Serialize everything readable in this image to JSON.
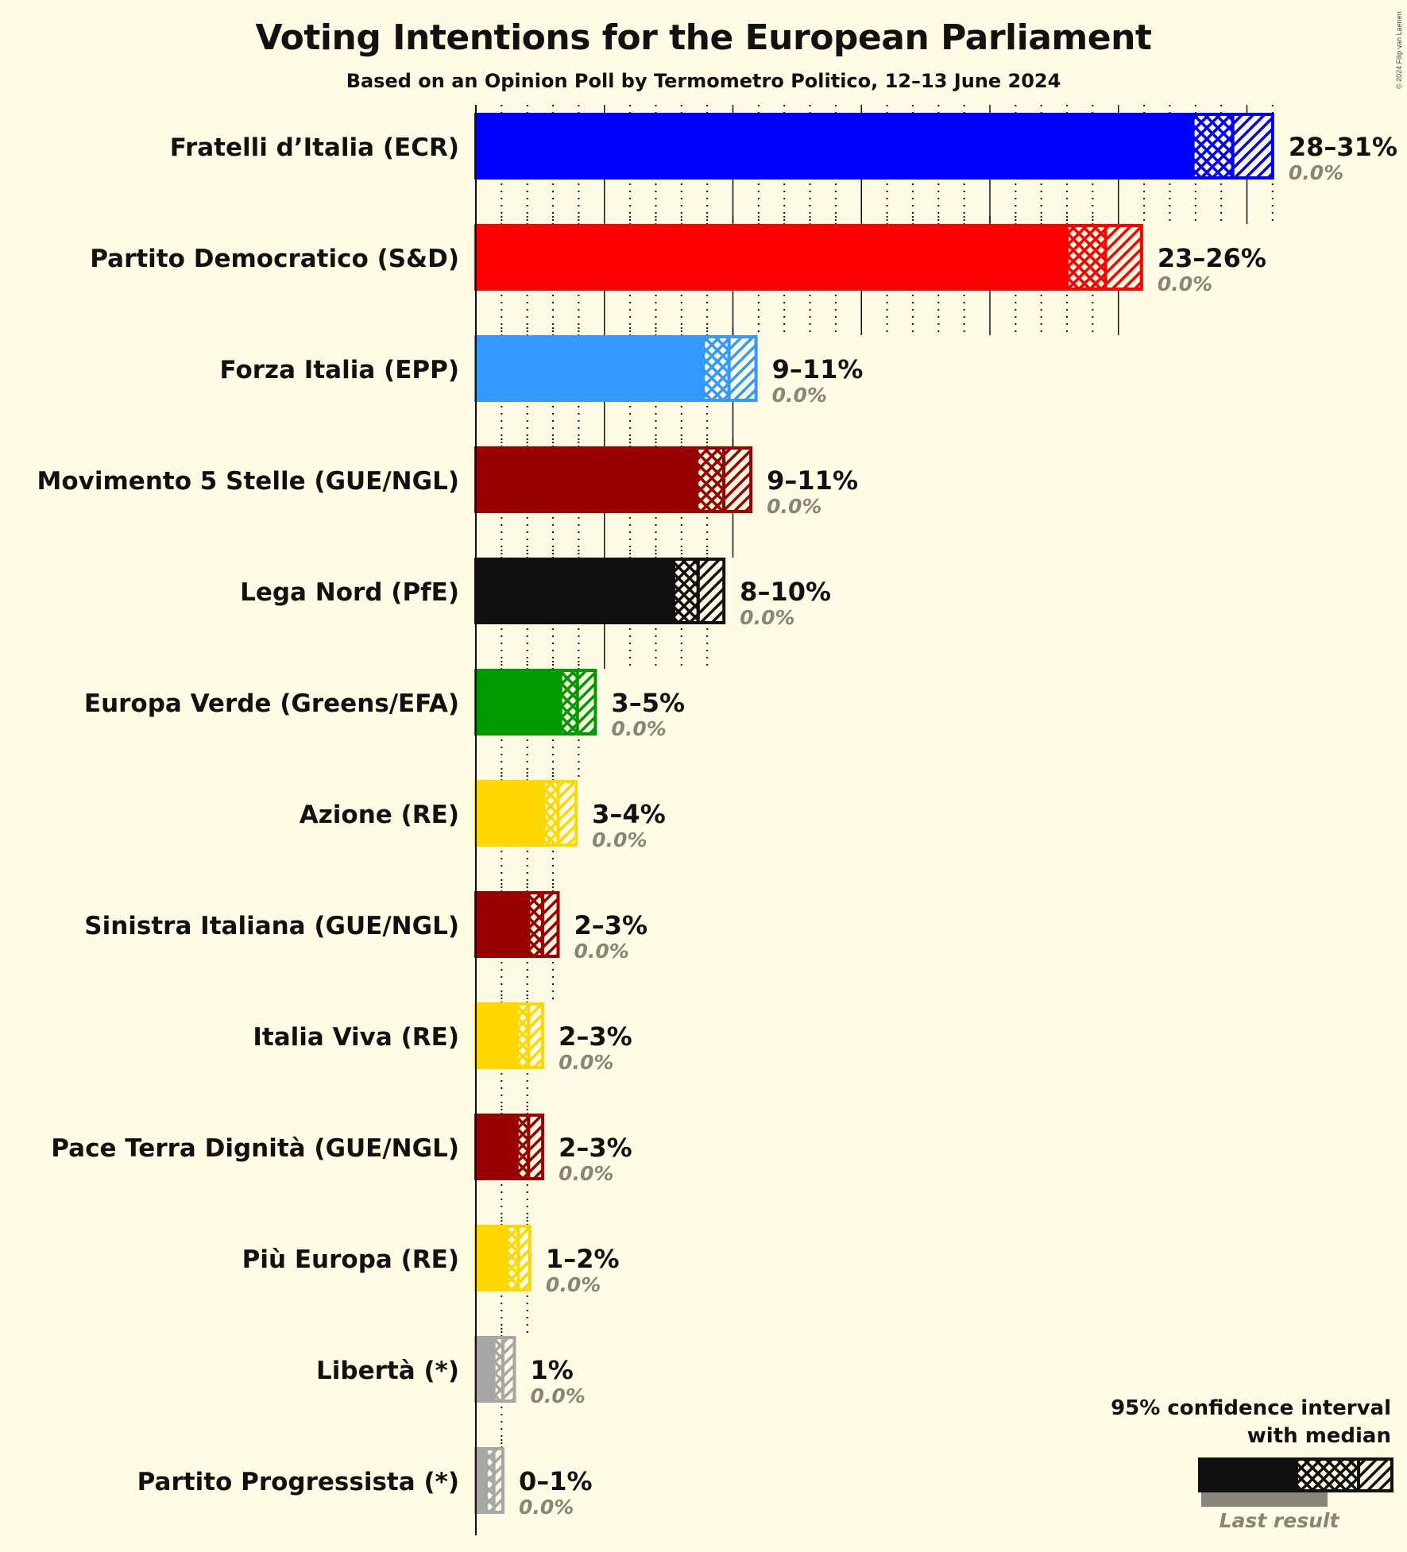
{
  "header": {
    "title": "Voting Intentions for the European Parliament",
    "subtitle": "Based on an Opinion Poll by Termometro Politico, 12–13 June 2024",
    "copyright": "© 2024 Filip van Laenen"
  },
  "legend": {
    "line1": "95% confidence interval",
    "line2": "with median",
    "last_result": "Last result",
    "bar_color": "#111111",
    "last_color": "#888477"
  },
  "chart_data": {
    "type": "bar",
    "orientation": "horizontal",
    "title": "Voting Intentions for the European Parliament",
    "subtitle": "Based on an Opinion Poll by Termometro Politico, 12–13 June 2024",
    "xlabel": "",
    "ylabel": "",
    "unit": "%",
    "xlim": [
      0,
      31
    ],
    "grid": {
      "major_every": 5,
      "minor_every": 1
    },
    "legend": [
      "95% confidence interval with median",
      "Last result"
    ],
    "legend_position": "bottom-right",
    "categories": [
      "Fratelli d’Italia (ECR)",
      "Partito Democratico (S&D)",
      "Forza Italia (EPP)",
      "Movimento 5 Stelle (GUE/NGL)",
      "Lega Nord (PfE)",
      "Europa Verde (Greens/EFA)",
      "Azione (RE)",
      "Sinistra Italiana (GUE/NGL)",
      "Italia Viva (RE)",
      "Pace Terra Dignità (GUE/NGL)",
      "Più Europa (RE)",
      "Libertà (*)",
      "Partito Progressista (*)"
    ],
    "series": [
      {
        "name": "ci_low",
        "values": [
          27.9,
          23.0,
          8.85,
          8.6,
          7.7,
          3.3,
          2.65,
          2.05,
          1.6,
          1.6,
          1.2,
          0.7,
          0.4
        ]
      },
      {
        "name": "median",
        "values": [
          29.45,
          24.5,
          9.85,
          9.65,
          8.65,
          3.95,
          3.2,
          2.6,
          2.05,
          2.05,
          1.65,
          1.05,
          0.7
        ]
      },
      {
        "name": "ci_high",
        "values": [
          31.0,
          25.9,
          10.9,
          10.7,
          9.65,
          4.65,
          3.9,
          3.2,
          2.6,
          2.6,
          2.1,
          1.5,
          1.05
        ]
      },
      {
        "name": "last_result",
        "values": [
          0.0,
          0.0,
          0.0,
          0.0,
          0.0,
          0.0,
          0.0,
          0.0,
          0.0,
          0.0,
          0.0,
          0.0,
          0.0
        ]
      }
    ],
    "parties": [
      {
        "name": "Fratelli d’Italia (ECR)",
        "color": "#0000FF",
        "range_label": "28–31%",
        "last_label": "0.0%",
        "low": 27.9,
        "median": 29.45,
        "high": 31.0
      },
      {
        "name": "Partito Democratico (S&D)",
        "color": "#FF0000",
        "range_label": "23–26%",
        "last_label": "0.0%",
        "low": 23.0,
        "median": 24.5,
        "high": 25.9
      },
      {
        "name": "Forza Italia (EPP)",
        "color": "#3399FF",
        "range_label": "9–11%",
        "last_label": "0.0%",
        "low": 8.85,
        "median": 9.85,
        "high": 10.9
      },
      {
        "name": "Movimento 5 Stelle (GUE/NGL)",
        "color": "#990000",
        "range_label": "9–11%",
        "last_label": "0.0%",
        "low": 8.6,
        "median": 9.65,
        "high": 10.7
      },
      {
        "name": "Lega Nord (PfE)",
        "color": "#111111",
        "range_label": "8–10%",
        "last_label": "0.0%",
        "low": 7.7,
        "median": 8.65,
        "high": 9.65
      },
      {
        "name": "Europa Verde (Greens/EFA)",
        "color": "#009900",
        "range_label": "3–5%",
        "last_label": "0.0%",
        "low": 3.3,
        "median": 3.95,
        "high": 4.65
      },
      {
        "name": "Azione (RE)",
        "color": "#FFD700",
        "range_label": "3–4%",
        "last_label": "0.0%",
        "low": 2.65,
        "median": 3.2,
        "high": 3.9
      },
      {
        "name": "Sinistra Italiana (GUE/NGL)",
        "color": "#990000",
        "range_label": "2–3%",
        "last_label": "0.0%",
        "low": 2.05,
        "median": 2.6,
        "high": 3.2
      },
      {
        "name": "Italia Viva (RE)",
        "color": "#FFD700",
        "range_label": "2–3%",
        "last_label": "0.0%",
        "low": 1.6,
        "median": 2.05,
        "high": 2.6
      },
      {
        "name": "Pace Terra Dignità (GUE/NGL)",
        "color": "#990000",
        "range_label": "2–3%",
        "last_label": "0.0%",
        "low": 1.6,
        "median": 2.05,
        "high": 2.6
      },
      {
        "name": "Più Europa (RE)",
        "color": "#FFD700",
        "range_label": "1–2%",
        "last_label": "0.0%",
        "low": 1.2,
        "median": 1.65,
        "high": 2.1
      },
      {
        "name": "Libertà (*)",
        "color": "#A6A6A6",
        "range_label": "1%",
        "last_label": "0.0%",
        "low": 0.7,
        "median": 1.05,
        "high": 1.5
      },
      {
        "name": "Partito Progressista (*)",
        "color": "#A6A6A6",
        "range_label": "0–1%",
        "last_label": "0.0%",
        "low": 0.4,
        "median": 0.7,
        "high": 1.05
      }
    ]
  }
}
